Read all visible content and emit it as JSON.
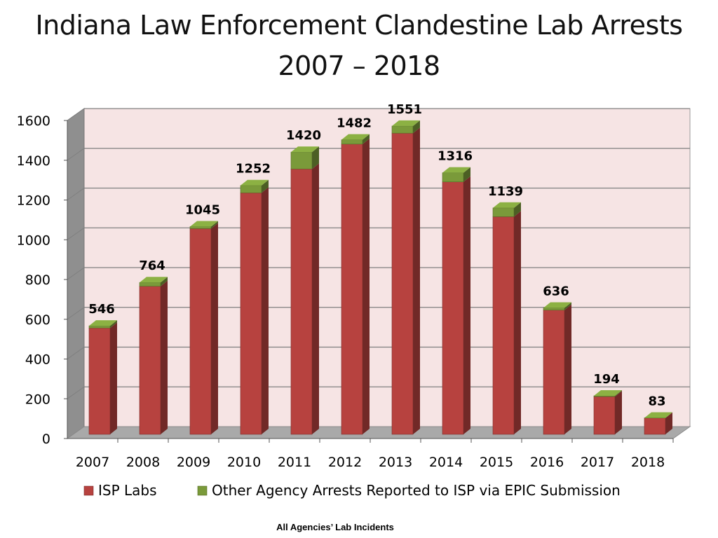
{
  "chart_data": {
    "type": "bar",
    "stacked": true,
    "title": "Indiana Law Enforcement Clandestine Lab Arrests",
    "subtitle": "2007 – 2018",
    "categories": [
      "2007",
      "2008",
      "2009",
      "2010",
      "2011",
      "2012",
      "2013",
      "2014",
      "2015",
      "2016",
      "2017",
      "2018"
    ],
    "series": [
      {
        "name": "ISP Labs",
        "color": "#b7423f",
        "values": [
          535,
          745,
          1035,
          1215,
          1335,
          1460,
          1515,
          1270,
          1095,
          625,
          190,
          82
        ]
      },
      {
        "name": "Other Agency Arrests Reported to ISP via EPIC Submission",
        "color": "#7a9a3a",
        "values": [
          11,
          19,
          10,
          37,
          85,
          22,
          36,
          46,
          44,
          11,
          4,
          1
        ]
      }
    ],
    "totals": [
      546,
      764,
      1045,
      1252,
      1420,
      1482,
      1551,
      1316,
      1139,
      636,
      194,
      83
    ],
    "ylim": [
      0,
      1600
    ],
    "yticks": [
      0,
      200,
      400,
      600,
      800,
      1000,
      1200,
      1400,
      1600
    ],
    "grid": true,
    "legend_position": "bottom",
    "footnote": "All Agencies’ Lab Incidents"
  }
}
